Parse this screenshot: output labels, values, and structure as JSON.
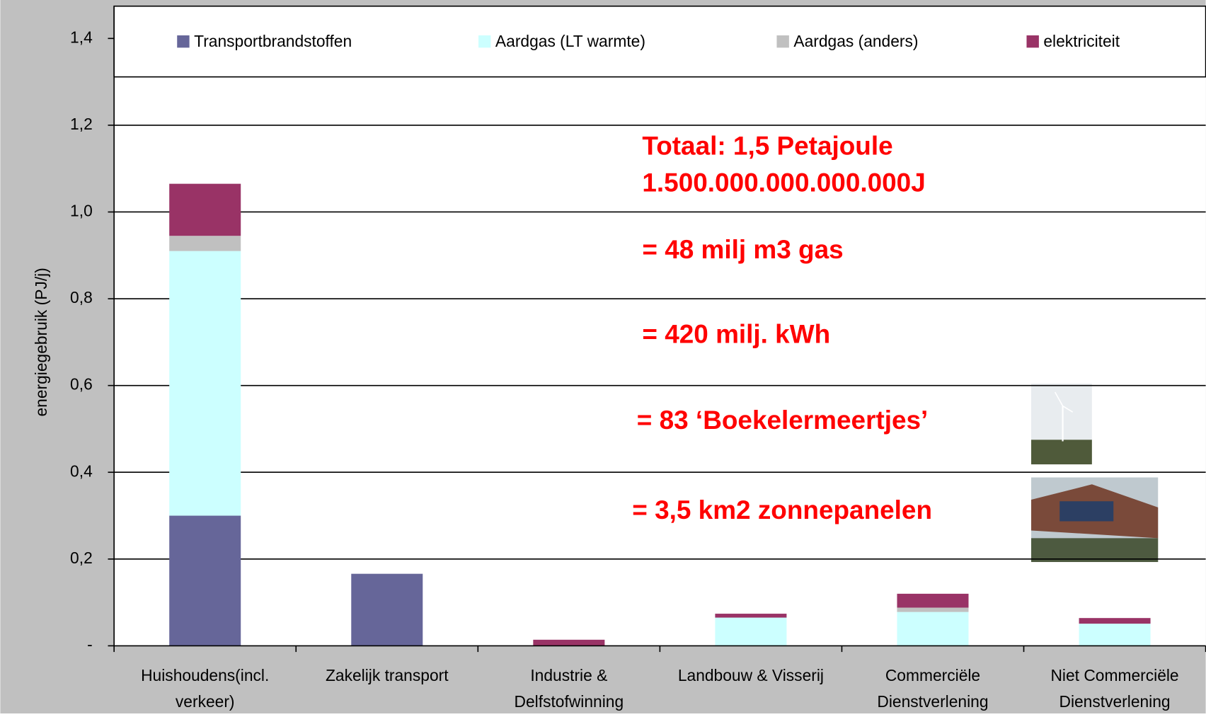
{
  "chart_data": {
    "type": "stacked_bar",
    "y_label": "energiegebruik (PJ/j)",
    "categories": [
      [
        "Huishoudens(incl.",
        "verkeer)"
      ],
      [
        "Zakelijk transport"
      ],
      [
        "Industrie &",
        "Delfstofwinning"
      ],
      [
        "Landbouw & Visserij"
      ],
      [
        "Commerciële",
        "Dienstverlening"
      ],
      [
        "Niet Commerciële",
        "Dienstverlening"
      ]
    ],
    "series": [
      {
        "name": "Transportbrandstoffen",
        "color": "#666699",
        "values": [
          0.3,
          0.166,
          0,
          0,
          0,
          0
        ]
      },
      {
        "name": "Aardgas (LT warmte)",
        "color": "#ccffff",
        "values": [
          0.61,
          0,
          0,
          0.065,
          0.078,
          0.051
        ]
      },
      {
        "name": "Aardgas (anders)",
        "color": "#c0c0c0",
        "values": [
          0.035,
          0,
          0,
          0,
          0.01,
          0
        ]
      },
      {
        "name": "elektriciteit",
        "color": "#993366",
        "values": [
          0.12,
          0,
          0.014,
          0.009,
          0.032,
          0.013
        ]
      }
    ],
    "ylim": [
      0,
      1.4
    ],
    "yticks": [
      {
        "value": 0,
        "label": "-"
      },
      {
        "value": 0.2,
        "label": "0,2"
      },
      {
        "value": 0.4,
        "label": "0,4"
      },
      {
        "value": 0.6,
        "label": "0,6"
      },
      {
        "value": 0.8,
        "label": "0,8"
      },
      {
        "value": 1.0,
        "label": "1,0"
      },
      {
        "value": 1.2,
        "label": "1,2"
      },
      {
        "value": 1.4,
        "label": "1,4"
      }
    ],
    "grid": true,
    "legend": "top",
    "annotations": [
      "Totaal: 1,5 Petajoule",
      "1.500.000.000.000.000J",
      "= 48 milj m3 gas",
      "= 420 milj. kWh",
      "= 83 ‘Boekelermeertjes’",
      "= 3,5 km2 zonnepanelen"
    ]
  }
}
